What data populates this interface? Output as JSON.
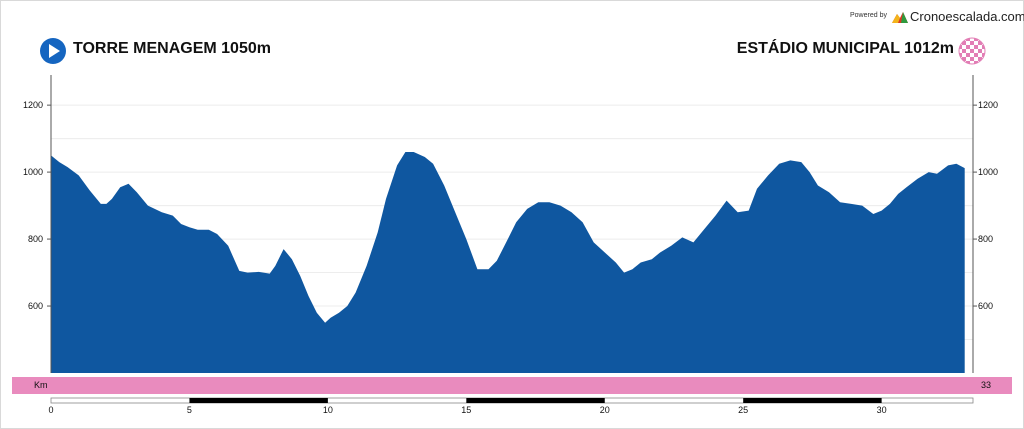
{
  "header": {
    "powered_label": "Powered by",
    "brand_name": "Cronoescalada.com",
    "start_name": "TORRE MENAGEM 1050m",
    "finish_name": "ESTÁDIO MUNICIPAL 1012m"
  },
  "icons": {
    "start": "play-arrow-icon",
    "finish": "checkered-flag-icon",
    "brand": "mountain-logo-icon"
  },
  "colors": {
    "profile_fill": "#0f57a0",
    "km_band": "#e98bbe",
    "start_icon": "#1565c0",
    "finish_icon": "#e27eb5"
  },
  "km_band": {
    "unit_label": "Km",
    "total_label": "33"
  },
  "chart_data": {
    "type": "area",
    "xlabel": "",
    "ylabel": "",
    "xlim": [
      0,
      33.3
    ],
    "ylim": [
      400,
      1290
    ],
    "y_ticks": [
      600,
      800,
      1000,
      1200
    ],
    "x_ticks": [
      0,
      5,
      10,
      15,
      20,
      25,
      30
    ],
    "grid": true,
    "series": [
      {
        "x": [
          0,
          0.3,
          0.6,
          1,
          1.4,
          1.8,
          2,
          2.2,
          2.5,
          2.8,
          3.1,
          3.5,
          4,
          4.4,
          4.7,
          5,
          5.3,
          5.7,
          6,
          6.4,
          6.8,
          7.1,
          7.5,
          7.9,
          8.1,
          8.4,
          8.7,
          9,
          9.3,
          9.6,
          9.9,
          10.1,
          10.4,
          10.7,
          11,
          11.4,
          11.8,
          12.1,
          12.5,
          12.8,
          13.1,
          13.5,
          13.8,
          14.2,
          14.6,
          15,
          15.4,
          15.8,
          16.1,
          16.5,
          16.8,
          17.2,
          17.6,
          18,
          18.4,
          18.8,
          19.2,
          19.6,
          20,
          20.4,
          20.7,
          21,
          21.3,
          21.7,
          22,
          22.4,
          22.8,
          23.2,
          23.6,
          24,
          24.4,
          24.8,
          25.2,
          25.5,
          25.9,
          26.3,
          26.7,
          27.1,
          27.4,
          27.7,
          28.1,
          28.5,
          28.9,
          29.3,
          29.7,
          30,
          30.3,
          30.6,
          30.9,
          31.3,
          31.7,
          32,
          32.4,
          32.7,
          33
        ],
        "y": [
          1050,
          1030,
          1015,
          990,
          945,
          905,
          905,
          920,
          955,
          965,
          940,
          900,
          880,
          870,
          845,
          835,
          828,
          828,
          815,
          780,
          705,
          700,
          702,
          697,
          720,
          770,
          740,
          690,
          630,
          580,
          550,
          565,
          580,
          600,
          640,
          720,
          820,
          920,
          1020,
          1060,
          1060,
          1045,
          1025,
          960,
          880,
          800,
          710,
          710,
          735,
          800,
          850,
          890,
          910,
          910,
          900,
          880,
          850,
          790,
          760,
          730,
          700,
          710,
          730,
          740,
          760,
          780,
          805,
          790,
          830,
          870,
          915,
          880,
          885,
          950,
          990,
          1025,
          1035,
          1030,
          1000,
          960,
          940,
          910,
          905,
          900,
          875,
          885,
          905,
          935,
          955,
          980,
          1000,
          995,
          1020,
          1025,
          1012
        ]
      }
    ]
  }
}
